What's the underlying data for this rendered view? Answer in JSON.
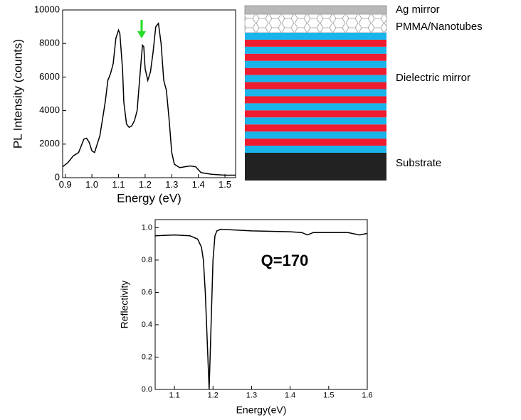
{
  "chart_data": [
    {
      "type": "line",
      "x_label": "Energy (eV)",
      "y_label": "PL Intensity (counts)",
      "color": "#000000",
      "x": [
        0.89,
        0.91,
        0.93,
        0.95,
        0.97,
        0.98,
        0.99,
        1.0,
        1.01,
        1.03,
        1.05,
        1.06,
        1.07,
        1.08,
        1.09,
        1.1,
        1.105,
        1.115,
        1.12,
        1.13,
        1.14,
        1.15,
        1.16,
        1.17,
        1.18,
        1.19,
        1.195,
        1.2,
        1.21,
        1.22,
        1.23,
        1.24,
        1.25,
        1.26,
        1.27,
        1.28,
        1.29,
        1.3,
        1.31,
        1.33,
        1.35,
        1.37,
        1.39,
        1.41,
        1.45,
        1.5,
        1.54
      ],
      "values": [
        650,
        900,
        1300,
        1500,
        2300,
        2350,
        2100,
        1600,
        1500,
        2500,
        4500,
        5800,
        6200,
        6800,
        8300,
        8800,
        8600,
        6500,
        4500,
        3200,
        3000,
        3100,
        3400,
        4000,
        6000,
        7900,
        7800,
        6500,
        5800,
        6300,
        7500,
        9000,
        9200,
        8000,
        5800,
        5200,
        3500,
        1500,
        800,
        600,
        650,
        700,
        650,
        300,
        200,
        150,
        150
      ],
      "xlim": [
        0.89,
        1.54
      ],
      "ylim": [
        0,
        10000
      ],
      "xticks": [
        0.9,
        {
          "value": 1.0,
          "label": "1.0"
        },
        1.1,
        1.2,
        1.3,
        1.4,
        1.5
      ],
      "yticks": [
        0,
        2000,
        4000,
        6000,
        8000,
        10000
      ]
    },
    {
      "type": "line",
      "x_label": "Energy(eV)",
      "y_label": "Reflectivity",
      "annotation": "Q=170",
      "color": "#000000",
      "x": [
        1.05,
        1.1,
        1.14,
        1.16,
        1.17,
        1.175,
        1.18,
        1.185,
        1.19,
        1.195,
        1.2,
        1.205,
        1.21,
        1.22,
        1.3,
        1.4,
        1.43,
        1.445,
        1.46,
        1.5,
        1.55,
        1.57,
        1.58,
        1.6
      ],
      "values": [
        0.95,
        0.955,
        0.95,
        0.93,
        0.88,
        0.8,
        0.6,
        0.3,
        0.0,
        0.4,
        0.8,
        0.95,
        0.98,
        0.99,
        0.98,
        0.975,
        0.97,
        0.955,
        0.97,
        0.97,
        0.97,
        0.96,
        0.955,
        0.965
      ],
      "xlim": [
        1.05,
        1.6
      ],
      "ylim": [
        0,
        1.05
      ],
      "xticks": [
        1.1,
        1.2,
        1.3,
        1.4,
        1.5,
        1.6
      ],
      "yticks": [
        {
          "value": 0,
          "label": "0.0"
        },
        0.2,
        0.4,
        0.6,
        0.8,
        {
          "value": 1,
          "label": "1.0"
        }
      ]
    }
  ],
  "diagram": {
    "labels": [
      "Ag mirror",
      "PMMA/Nanotubes",
      "Dielectric mirror",
      "Substrate"
    ]
  }
}
